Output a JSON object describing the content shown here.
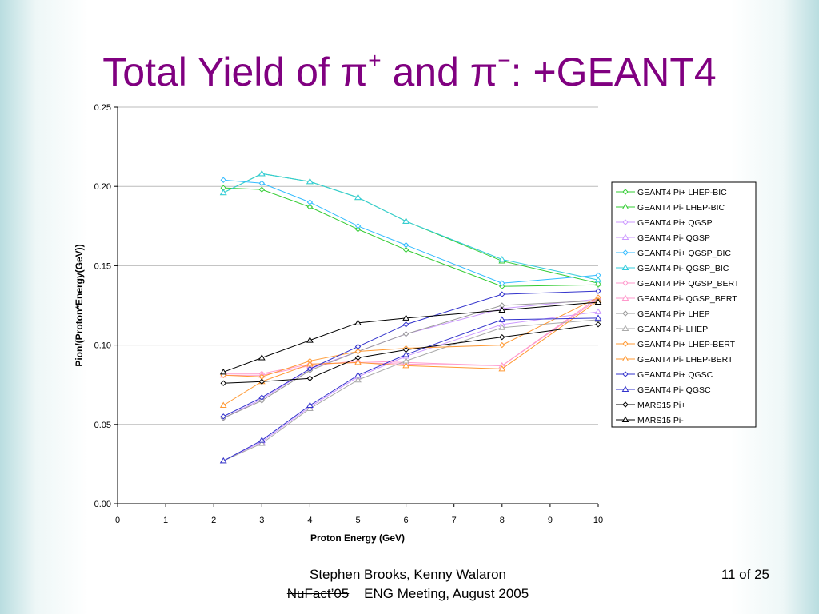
{
  "slide": {
    "title_prefix": "Total Yield of ",
    "pi": "π",
    "plus": "+",
    "title_mid": " and ",
    "minus": "−",
    "title_suffix": ": +GEANT4",
    "footer_authors": "Stephen Brooks, Kenny Walaron",
    "footer_event_struck": "NuFact’05",
    "footer_event": "ENG Meeting, August 2005",
    "page_number": "11 of 25"
  },
  "chart_data": {
    "type": "line",
    "xlabel": "Proton Energy (GeV)",
    "ylabel": "Pion/(Proton*Energy(GeV))",
    "xlim": [
      0,
      10
    ],
    "ylim": [
      0,
      0.25
    ],
    "x_ticks": [
      "0",
      "1",
      "2",
      "3",
      "4",
      "5",
      "6",
      "7",
      "8",
      "9",
      "10"
    ],
    "y_ticks": [
      "0.00",
      "0.05",
      "0.10",
      "0.15",
      "0.20",
      "0.25"
    ],
    "grid": "horizontal",
    "legend_position": "right",
    "x": [
      2.2,
      3,
      4,
      5,
      6,
      8,
      10
    ],
    "series": [
      {
        "name": "GEANT4 Pi+ LHEP-BIC",
        "color": "#33cc33",
        "marker": "diamond",
        "values": [
          0.199,
          0.198,
          0.187,
          0.173,
          0.16,
          0.137,
          0.138
        ]
      },
      {
        "name": "GEANT4 Pi- LHEP-BIC",
        "color": "#33cc33",
        "marker": "triangle",
        "values": [
          0.196,
          0.208,
          0.203,
          0.193,
          0.178,
          0.153,
          0.139
        ]
      },
      {
        "name": "GEANT4 Pi+ QGSP",
        "color": "#cc99ff",
        "marker": "diamond",
        "values": [
          0.054,
          0.066,
          0.085,
          0.096,
          0.107,
          0.123,
          0.129
        ]
      },
      {
        "name": "GEANT4 Pi- QGSP",
        "color": "#cc99ff",
        "marker": "triangle",
        "values": [
          0.027,
          0.039,
          0.061,
          0.08,
          0.093,
          0.113,
          0.121
        ]
      },
      {
        "name": "GEANT4 Pi+ QGSP_BIC",
        "color": "#33bbff",
        "marker": "diamond",
        "values": [
          0.204,
          0.202,
          0.19,
          0.175,
          0.163,
          0.139,
          0.144
        ]
      },
      {
        "name": "GEANT4 Pi- QGSP_BIC",
        "color": "#33ccdd",
        "marker": "triangle",
        "values": [
          0.196,
          0.208,
          0.203,
          0.193,
          0.178,
          0.154,
          0.141
        ]
      },
      {
        "name": "GEANT4 Pi+ QGSP_BERT",
        "color": "#ff99cc",
        "marker": "diamond",
        "values": [
          0.082,
          0.082,
          0.088,
          0.089,
          0.088,
          0.087,
          0.13
        ]
      },
      {
        "name": "GEANT4 Pi- QGSP_BERT",
        "color": "#ff99cc",
        "marker": "triangle",
        "values": [
          0.081,
          0.081,
          0.087,
          0.09,
          0.089,
          0.087,
          0.129
        ]
      },
      {
        "name": "GEANT4 Pi+ LHEP",
        "color": "#999999",
        "marker": "diamond",
        "values": [
          0.054,
          0.065,
          0.084,
          0.096,
          0.107,
          0.125,
          0.128
        ]
      },
      {
        "name": "GEANT4 Pi- LHEP",
        "color": "#aaaaaa",
        "marker": "triangle",
        "values": [
          0.027,
          0.038,
          0.06,
          0.078,
          0.09,
          0.111,
          0.116
        ]
      },
      {
        "name": "GEANT4 Pi+ LHEP-BERT",
        "color": "#ff9933",
        "marker": "diamond",
        "values": [
          0.081,
          0.08,
          0.09,
          0.096,
          0.098,
          0.1,
          0.13
        ]
      },
      {
        "name": "GEANT4 Pi- LHEP-BERT",
        "color": "#ff9933",
        "marker": "triangle",
        "values": [
          0.062,
          0.077,
          0.088,
          0.089,
          0.087,
          0.085,
          0.128
        ]
      },
      {
        "name": "GEANT4 Pi+ QGSC",
        "color": "#3333cc",
        "marker": "diamond",
        "values": [
          0.055,
          0.067,
          0.085,
          0.099,
          0.113,
          0.132,
          0.134
        ]
      },
      {
        "name": "GEANT4 Pi- QGSC",
        "color": "#3333cc",
        "marker": "triangle",
        "values": [
          0.027,
          0.04,
          0.062,
          0.081,
          0.094,
          0.116,
          0.117
        ]
      },
      {
        "name": "MARS15 Pi+",
        "color": "#000000",
        "marker": "diamond",
        "values": [
          0.076,
          0.077,
          0.079,
          0.092,
          0.097,
          0.105,
          0.113
        ]
      },
      {
        "name": "MARS15 Pi-",
        "color": "#000000",
        "marker": "triangle",
        "values": [
          0.083,
          0.092,
          0.103,
          0.114,
          0.117,
          0.122,
          0.127
        ]
      }
    ]
  }
}
